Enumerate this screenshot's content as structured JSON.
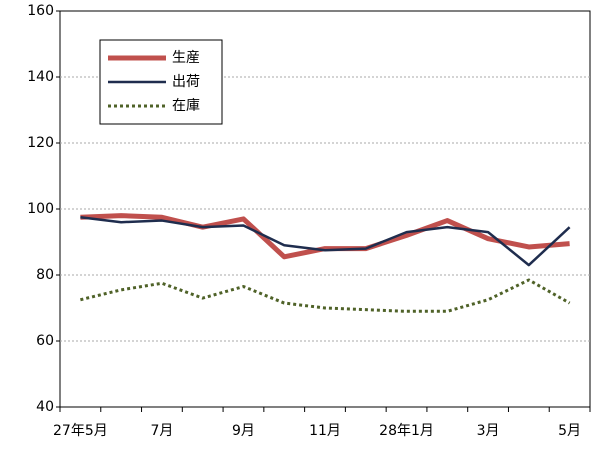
{
  "chart_data": {
    "type": "line",
    "categories": [
      "27年5月",
      null,
      "7月",
      null,
      "9月",
      null,
      "11月",
      null,
      "28年1月",
      null,
      "3月",
      null,
      "5月"
    ],
    "series": [
      {
        "name": "生産",
        "color": "#c0504d",
        "width": 5,
        "dash": "none",
        "values": [
          97.5,
          98,
          97.5,
          94.5,
          97,
          85.5,
          88,
          88,
          92,
          96.5,
          91,
          88.5,
          89.5
        ]
      },
      {
        "name": "出荷",
        "color": "#1f2d4e",
        "width": 2.5,
        "dash": "none",
        "values": [
          97.5,
          96,
          96.5,
          94.5,
          95,
          89,
          87.5,
          88,
          93,
          94.5,
          93,
          83,
          94.5
        ]
      },
      {
        "name": "在庫",
        "color": "#4f6228",
        "width": 3,
        "dash": "3 3",
        "values": [
          72.5,
          75.5,
          77.5,
          73,
          76.5,
          71.5,
          70,
          69.5,
          69,
          69,
          72.5,
          78.5,
          71.5
        ]
      }
    ],
    "ylim": [
      40,
      160
    ],
    "yticks": [
      40,
      60,
      80,
      100,
      120,
      140,
      160
    ],
    "grid": true,
    "legend": "upper left"
  }
}
